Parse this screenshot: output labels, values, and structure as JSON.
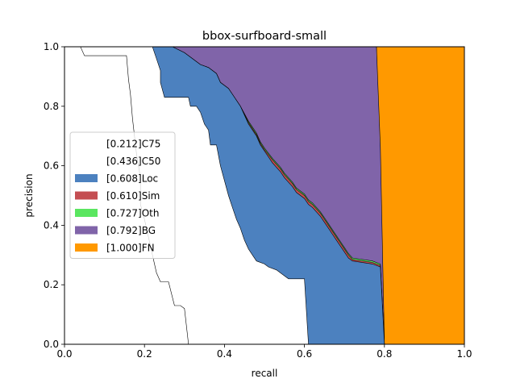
{
  "chart_data": {
    "type": "area",
    "title": "bbox-surfboard-small",
    "xlabel": "recall",
    "ylabel": "precision",
    "xlim": [
      0,
      1
    ],
    "ylim": [
      0,
      1
    ],
    "xticks": [
      "0.0",
      "0.2",
      "0.4",
      "0.6",
      "0.8",
      "1.0"
    ],
    "yticks": [
      "0.0",
      "0.2",
      "0.4",
      "0.6",
      "0.8",
      "1.0"
    ],
    "legend_position": "center-left",
    "legend": [
      {
        "label": "[0.212]C75",
        "color": "#ffffff"
      },
      {
        "label": "[0.436]C50",
        "color": "#ffffff"
      },
      {
        "label": "[0.608]Loc",
        "color": "#4c81bf"
      },
      {
        "label": "[0.610]Sim",
        "color": "#c44e52"
      },
      {
        "label": "[0.727]Oth",
        "color": "#5ae660"
      },
      {
        "label": "[0.792]BG",
        "color": "#8064a9"
      },
      {
        "label": "[1.000]FN",
        "color": "#ff9900"
      }
    ],
    "series": [
      {
        "name": "[0.212]C75",
        "points": [
          [
            0.0,
            1.0
          ],
          [
            0.04,
            1.0
          ],
          [
            0.05,
            0.97
          ],
          [
            0.155,
            0.97
          ],
          [
            0.16,
            0.89
          ],
          [
            0.165,
            0.84
          ],
          [
            0.17,
            0.76
          ],
          [
            0.18,
            0.64
          ],
          [
            0.19,
            0.56
          ],
          [
            0.19,
            0.47
          ],
          [
            0.2,
            0.42
          ],
          [
            0.22,
            0.3
          ],
          [
            0.23,
            0.24
          ],
          [
            0.24,
            0.21
          ],
          [
            0.26,
            0.21
          ],
          [
            0.275,
            0.13
          ],
          [
            0.29,
            0.13
          ],
          [
            0.3,
            0.12
          ],
          [
            0.31,
            0.0
          ]
        ]
      },
      {
        "name": "[0.436]C50",
        "points": [
          [
            0.0,
            1.0
          ],
          [
            0.22,
            1.0
          ],
          [
            0.23,
            0.96
          ],
          [
            0.24,
            0.92
          ],
          [
            0.24,
            0.88
          ],
          [
            0.25,
            0.83
          ],
          [
            0.31,
            0.83
          ],
          [
            0.315,
            0.8
          ],
          [
            0.33,
            0.8
          ],
          [
            0.34,
            0.78
          ],
          [
            0.35,
            0.74
          ],
          [
            0.36,
            0.72
          ],
          [
            0.365,
            0.67
          ],
          [
            0.38,
            0.67
          ],
          [
            0.39,
            0.6
          ],
          [
            0.4,
            0.55
          ],
          [
            0.41,
            0.5
          ],
          [
            0.42,
            0.46
          ],
          [
            0.43,
            0.42
          ],
          [
            0.44,
            0.39
          ],
          [
            0.45,
            0.35
          ],
          [
            0.46,
            0.32
          ],
          [
            0.47,
            0.3
          ],
          [
            0.48,
            0.28
          ],
          [
            0.5,
            0.27
          ],
          [
            0.51,
            0.26
          ],
          [
            0.53,
            0.25
          ],
          [
            0.55,
            0.23
          ],
          [
            0.56,
            0.22
          ],
          [
            0.6,
            0.22
          ],
          [
            0.61,
            0.0
          ]
        ]
      },
      {
        "name": "[0.608]Loc",
        "points": [
          [
            0.22,
            1.0
          ],
          [
            0.27,
            1.0
          ],
          [
            0.3,
            0.98
          ],
          [
            0.32,
            0.96
          ],
          [
            0.34,
            0.94
          ],
          [
            0.36,
            0.93
          ],
          [
            0.38,
            0.91
          ],
          [
            0.39,
            0.88
          ],
          [
            0.41,
            0.86
          ],
          [
            0.42,
            0.84
          ],
          [
            0.44,
            0.8
          ],
          [
            0.46,
            0.74
          ],
          [
            0.48,
            0.7
          ],
          [
            0.49,
            0.67
          ],
          [
            0.5,
            0.65
          ],
          [
            0.52,
            0.61
          ],
          [
            0.54,
            0.58
          ],
          [
            0.55,
            0.56
          ],
          [
            0.57,
            0.53
          ],
          [
            0.58,
            0.51
          ],
          [
            0.6,
            0.49
          ],
          [
            0.61,
            0.47
          ],
          [
            0.62,
            0.46
          ],
          [
            0.64,
            0.43
          ],
          [
            0.65,
            0.41
          ],
          [
            0.66,
            0.39
          ],
          [
            0.67,
            0.37
          ],
          [
            0.68,
            0.35
          ],
          [
            0.69,
            0.33
          ],
          [
            0.7,
            0.31
          ],
          [
            0.71,
            0.29
          ],
          [
            0.72,
            0.28
          ],
          [
            0.77,
            0.27
          ],
          [
            0.79,
            0.26
          ],
          [
            0.8,
            0.0
          ]
        ]
      },
      {
        "name": "[0.610]Sim",
        "points": [
          [
            0.22,
            1.0
          ],
          [
            0.27,
            1.0
          ],
          [
            0.3,
            0.98
          ],
          [
            0.32,
            0.96
          ],
          [
            0.34,
            0.94
          ],
          [
            0.36,
            0.93
          ],
          [
            0.38,
            0.91
          ],
          [
            0.39,
            0.88
          ],
          [
            0.41,
            0.86
          ],
          [
            0.42,
            0.84
          ],
          [
            0.44,
            0.8
          ],
          [
            0.46,
            0.745
          ],
          [
            0.48,
            0.705
          ],
          [
            0.49,
            0.675
          ],
          [
            0.5,
            0.655
          ],
          [
            0.52,
            0.62
          ],
          [
            0.54,
            0.59
          ],
          [
            0.55,
            0.57
          ],
          [
            0.57,
            0.54
          ],
          [
            0.58,
            0.52
          ],
          [
            0.6,
            0.5
          ],
          [
            0.61,
            0.48
          ],
          [
            0.62,
            0.47
          ],
          [
            0.64,
            0.44
          ],
          [
            0.65,
            0.42
          ],
          [
            0.66,
            0.4
          ],
          [
            0.67,
            0.38
          ],
          [
            0.68,
            0.36
          ],
          [
            0.69,
            0.34
          ],
          [
            0.7,
            0.32
          ],
          [
            0.71,
            0.3
          ],
          [
            0.72,
            0.285
          ],
          [
            0.77,
            0.275
          ],
          [
            0.79,
            0.265
          ],
          [
            0.8,
            0.0
          ]
        ]
      },
      {
        "name": "[0.727]Oth",
        "points": [
          [
            0.22,
            1.0
          ],
          [
            0.27,
            1.0
          ],
          [
            0.3,
            0.98
          ],
          [
            0.32,
            0.96
          ],
          [
            0.34,
            0.94
          ],
          [
            0.36,
            0.93
          ],
          [
            0.38,
            0.91
          ],
          [
            0.39,
            0.88
          ],
          [
            0.41,
            0.86
          ],
          [
            0.42,
            0.84
          ],
          [
            0.44,
            0.8
          ],
          [
            0.46,
            0.75
          ],
          [
            0.48,
            0.71
          ],
          [
            0.49,
            0.68
          ],
          [
            0.5,
            0.66
          ],
          [
            0.52,
            0.625
          ],
          [
            0.54,
            0.595
          ],
          [
            0.55,
            0.575
          ],
          [
            0.57,
            0.545
          ],
          [
            0.58,
            0.525
          ],
          [
            0.6,
            0.505
          ],
          [
            0.61,
            0.485
          ],
          [
            0.62,
            0.475
          ],
          [
            0.64,
            0.445
          ],
          [
            0.65,
            0.425
          ],
          [
            0.66,
            0.405
          ],
          [
            0.67,
            0.385
          ],
          [
            0.68,
            0.365
          ],
          [
            0.69,
            0.345
          ],
          [
            0.7,
            0.325
          ],
          [
            0.71,
            0.305
          ],
          [
            0.72,
            0.29
          ],
          [
            0.77,
            0.28
          ],
          [
            0.79,
            0.27
          ],
          [
            0.8,
            0.0
          ]
        ]
      },
      {
        "name": "[0.792]BG",
        "points": [
          [
            0.22,
            1.0
          ],
          [
            0.78,
            1.0
          ],
          [
            0.79,
            0.66
          ],
          [
            0.8,
            0.0
          ]
        ]
      },
      {
        "name": "[1.000]FN",
        "points": [
          [
            0.78,
            1.0
          ],
          [
            1.0,
            1.0
          ],
          [
            1.0,
            0.0
          ],
          [
            0.8,
            0.0
          ]
        ]
      }
    ]
  }
}
